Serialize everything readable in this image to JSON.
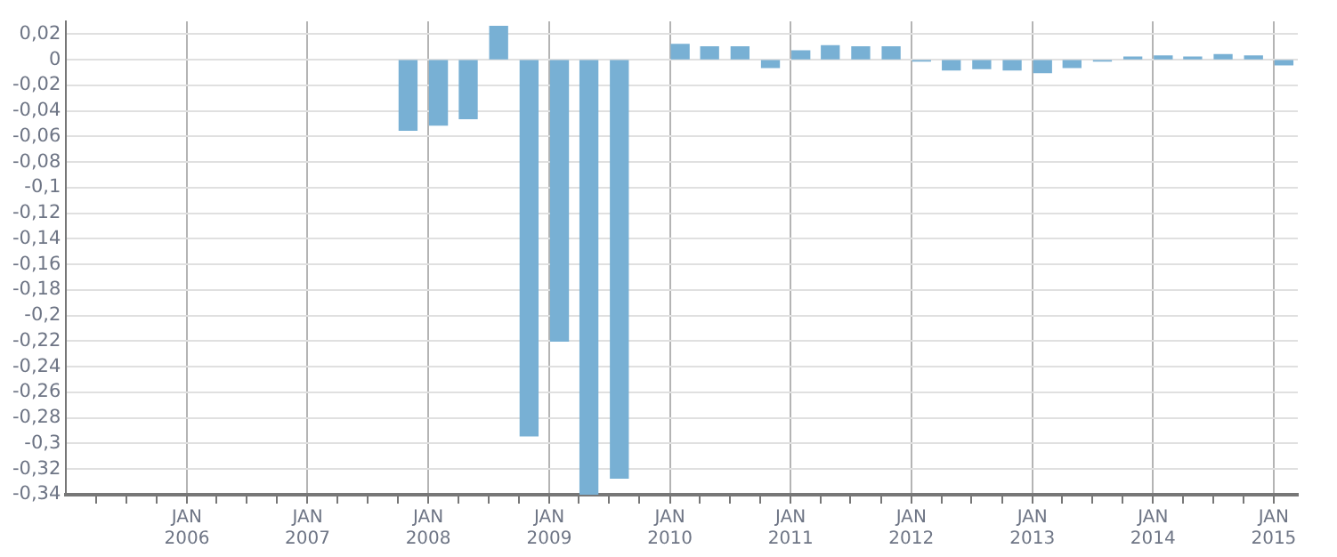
{
  "chart_data": {
    "type": "bar",
    "color": "#78b0d4",
    "x": [
      "2007-11",
      "2008-02",
      "2008-05",
      "2008-08",
      "2008-11",
      "2009-02",
      "2009-05",
      "2009-08",
      "2010-02",
      "2010-05",
      "2010-08",
      "2010-11",
      "2011-02",
      "2011-05",
      "2011-08",
      "2011-11",
      "2012-02",
      "2012-05",
      "2012-08",
      "2012-11",
      "2013-02",
      "2013-05",
      "2013-08",
      "2013-11",
      "2014-02",
      "2014-05",
      "2014-08",
      "2014-11",
      "2015-02"
    ],
    "values": [
      -0.055,
      -0.051,
      -0.046,
      0.026,
      -0.294,
      -0.22,
      -0.34,
      -0.327,
      0.012,
      0.01,
      0.01,
      -0.006,
      0.007,
      0.011,
      0.01,
      0.01,
      -0.001,
      -0.008,
      -0.007,
      -0.008,
      -0.01,
      -0.006,
      -0.001,
      0.002,
      0.003,
      0.002,
      0.004,
      0.003,
      -0.004
    ],
    "xlim": [
      "2005-01",
      "2015-03-15"
    ],
    "xticks": [
      {
        "value": "2005-04",
        "label": null
      },
      {
        "value": "2005-07",
        "label": null
      },
      {
        "value": "2005-10",
        "label": null
      },
      {
        "value": "2006-01",
        "label": "JAN\n2006"
      },
      {
        "value": "2006-04",
        "label": null
      },
      {
        "value": "2006-07",
        "label": null
      },
      {
        "value": "2006-10",
        "label": null
      },
      {
        "value": "2007-01",
        "label": "JAN\n2007"
      },
      {
        "value": "2007-04",
        "label": null
      },
      {
        "value": "2007-07",
        "label": null
      },
      {
        "value": "2007-10",
        "label": null
      },
      {
        "value": "2008-01",
        "label": "JAN\n2008"
      },
      {
        "value": "2008-04",
        "label": null
      },
      {
        "value": "2008-07",
        "label": null
      },
      {
        "value": "2008-10",
        "label": null
      },
      {
        "value": "2009-01",
        "label": "JAN\n2009"
      },
      {
        "value": "2009-04",
        "label": null
      },
      {
        "value": "2009-07",
        "label": null
      },
      {
        "value": "2009-10",
        "label": null
      },
      {
        "value": "2010-01",
        "label": "JAN\n2010"
      },
      {
        "value": "2010-04",
        "label": null
      },
      {
        "value": "2010-07",
        "label": null
      },
      {
        "value": "2010-10",
        "label": null
      },
      {
        "value": "2011-01",
        "label": "JAN\n2011"
      },
      {
        "value": "2011-04",
        "label": null
      },
      {
        "value": "2011-07",
        "label": null
      },
      {
        "value": "2011-10",
        "label": null
      },
      {
        "value": "2012-01",
        "label": "JAN\n2012"
      },
      {
        "value": "2012-04",
        "label": null
      },
      {
        "value": "2012-07",
        "label": null
      },
      {
        "value": "2012-10",
        "label": null
      },
      {
        "value": "2013-01",
        "label": "JAN\n2013"
      },
      {
        "value": "2013-04",
        "label": null
      },
      {
        "value": "2013-07",
        "label": null
      },
      {
        "value": "2013-10",
        "label": null
      },
      {
        "value": "2014-01",
        "label": "JAN\n2014"
      },
      {
        "value": "2014-04",
        "label": null
      },
      {
        "value": "2014-07",
        "label": null
      },
      {
        "value": "2014-10",
        "label": null
      },
      {
        "value": "2015-01",
        "label": "JAN\n2015"
      }
    ],
    "ylim": [
      -0.34,
      0.03
    ],
    "yticks": [
      {
        "value": -0.34,
        "label": "-0,34"
      },
      {
        "value": -0.32,
        "label": "-0,32"
      },
      {
        "value": -0.3,
        "label": "-0,3"
      },
      {
        "value": -0.28,
        "label": "-0,28"
      },
      {
        "value": -0.26,
        "label": "-0,26"
      },
      {
        "value": -0.24,
        "label": "-0,24"
      },
      {
        "value": -0.22,
        "label": "-0,22"
      },
      {
        "value": -0.2,
        "label": "-0,2"
      },
      {
        "value": -0.18,
        "label": "-0,18"
      },
      {
        "value": -0.16,
        "label": "-0,16"
      },
      {
        "value": -0.14,
        "label": "-0,14"
      },
      {
        "value": -0.12,
        "label": "-0,12"
      },
      {
        "value": -0.1,
        "label": "-0,1"
      },
      {
        "value": -0.08,
        "label": "-0,08"
      },
      {
        "value": -0.06,
        "label": "-0,06"
      },
      {
        "value": -0.04,
        "label": "-0,04"
      },
      {
        "value": -0.02,
        "label": "-0,02"
      },
      {
        "value": 0,
        "label": "0"
      },
      {
        "value": 0.02,
        "label": "0,02"
      }
    ],
    "grid": true,
    "legend": false
  }
}
